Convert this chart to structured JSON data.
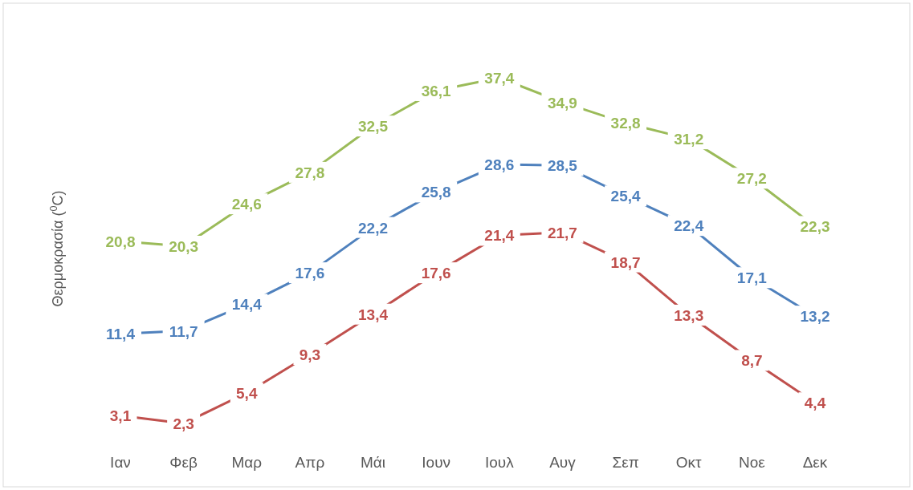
{
  "chart_data": {
    "type": "line",
    "ylabel": "Θερμοκρασία ($^{0}$C)",
    "categories": [
      "Ιαν",
      "Φεβ",
      "Μαρ",
      "Απρ",
      "Μάι",
      "Ιουν",
      "Ιουλ",
      "Αυγ",
      "Σεπ",
      "Οκτ",
      "Νοε",
      "Δεκ"
    ],
    "series": [
      {
        "color": "#9bbb59",
        "values": [
          20.8,
          20.3,
          24.6,
          27.8,
          32.5,
          36.1,
          37.4,
          34.9,
          32.8,
          31.2,
          27.2,
          22.3
        ],
        "value_labels": [
          "20,8",
          "20,3",
          "24,6",
          "27,8",
          "32,5",
          "36,1",
          "37,4",
          "34,9",
          "32,8",
          "31,2",
          "27,2",
          "22,3"
        ]
      },
      {
        "color": "#4f81bd",
        "values": [
          11.4,
          11.7,
          14.4,
          17.6,
          22.2,
          25.8,
          28.6,
          28.5,
          25.4,
          22.4,
          17.1,
          13.2
        ],
        "value_labels": [
          "11,4",
          "11,7",
          "14,4",
          "17,6",
          "22,2",
          "25,8",
          "28,6",
          "28,5",
          "25,4",
          "22,4",
          "17,1",
          "13,2"
        ]
      },
      {
        "color": "#c0504d",
        "values": [
          3.1,
          2.3,
          5.4,
          9.3,
          13.4,
          17.6,
          21.4,
          21.7,
          18.7,
          13.3,
          8.7,
          4.4
        ],
        "value_labels": [
          "3,1",
          "2,3",
          "5,4",
          "9,3",
          "13,4",
          "17,6",
          "21,4",
          "21,7",
          "18,7",
          "13,3",
          "8,7",
          "4,4"
        ]
      }
    ],
    "line_style": "solid",
    "grid": false
  }
}
